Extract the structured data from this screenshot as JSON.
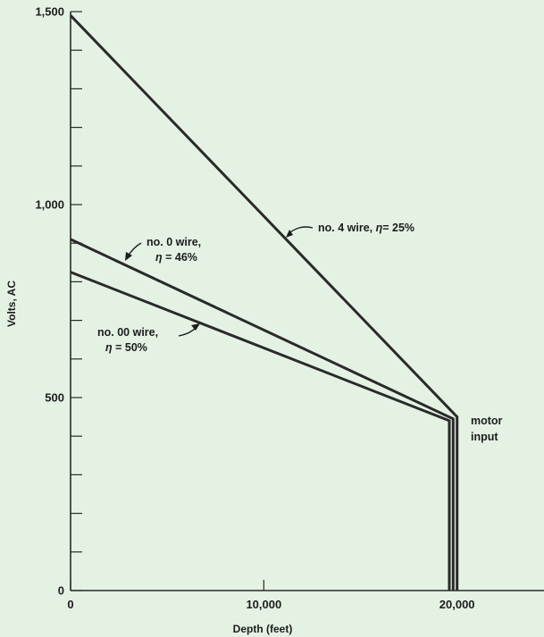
{
  "colors": {
    "background": "#e4f2e4",
    "ink": "#2a2a2a"
  },
  "chart_data": {
    "type": "line",
    "title": "",
    "xlabel": "Depth (feet)",
    "ylabel": "Volts, AC",
    "xlim": [
      0,
      24500
    ],
    "ylim": [
      0,
      1500
    ],
    "x_major_ticks": [
      0,
      10000,
      20000
    ],
    "x_minor_ticks": [],
    "x_tick_labels": [
      "0",
      "10,000",
      "20,000"
    ],
    "y_major_ticks": [
      0,
      500,
      1000,
      1500
    ],
    "y_minor_ticks": [
      100,
      200,
      300,
      400,
      600,
      700,
      800,
      900,
      1100,
      1200,
      1300,
      1400
    ],
    "y_tick_labels": [
      "0",
      "500",
      "1,000",
      "1,500"
    ],
    "grid": false,
    "series": [
      {
        "name": "no. 4 wire, η = 25%",
        "x": [
          0,
          20000,
          20000
        ],
        "y": [
          1490,
          450,
          0
        ]
      },
      {
        "name": "no. 0 wire, η = 46%",
        "x": [
          0,
          19800,
          19800
        ],
        "y": [
          910,
          445,
          0
        ]
      },
      {
        "name": "no. 00 wire, η = 50%",
        "x": [
          0,
          19600,
          19600
        ],
        "y": [
          825,
          440,
          0
        ]
      }
    ],
    "annotations": [
      {
        "lines": [
          "no. 4 wire, ",
          "= 25%"
        ],
        "eta": "η"
      },
      {
        "lines": [
          "no. 0 wire,",
          " = 46%"
        ],
        "eta": "η"
      },
      {
        "lines": [
          "no. 00 wire,",
          " = 50%"
        ],
        "eta": "η"
      },
      {
        "lines": [
          "motor",
          "input"
        ]
      }
    ]
  }
}
